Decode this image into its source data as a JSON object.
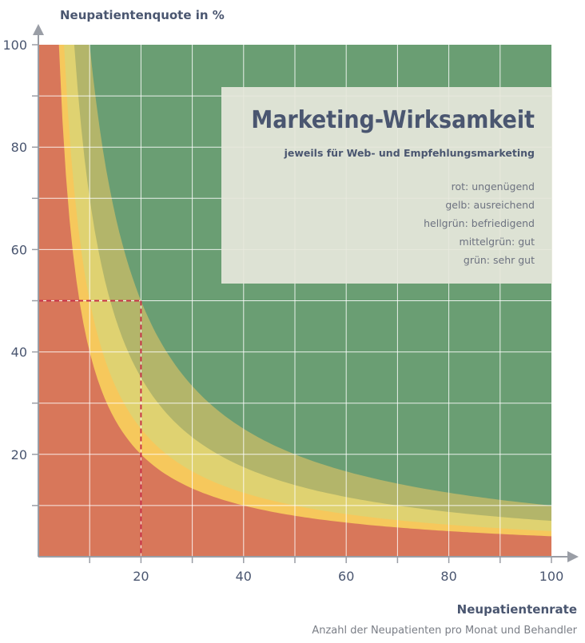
{
  "chart_data": {
    "type": "area",
    "title": "Marketing-Wirksamkeit",
    "subtitle": "jeweils für Web- und Empfehlungsmarketing",
    "ylabel": "Neupatientenquote in %",
    "xlabel": "Neupatientenrate",
    "xlabel_sub": "Anzahl der Neupatienten pro Monat und Behandler",
    "xlim": [
      0,
      100
    ],
    "ylim": [
      0,
      100
    ],
    "x_ticks": [
      20,
      40,
      60,
      80,
      100
    ],
    "y_ticks": [
      20,
      40,
      60,
      80,
      100
    ],
    "grid": true,
    "legend_position": "top-right",
    "legend": [
      "rot: ungenügend",
      "gelb: ausreichend",
      "hellgrün: befriedigend",
      "mittelgrün: gut",
      "grün: sehr gut"
    ],
    "boundaries": [
      {
        "x_times_y": 400,
        "below": "rot"
      },
      {
        "x_times_y": 500,
        "below": "gelb"
      },
      {
        "x_times_y": 700,
        "below": "hellgrün"
      },
      {
        "x_times_y": 1000,
        "below": "mittelgrün"
      }
    ],
    "reference_point": {
      "x": 20,
      "y": 50
    },
    "colors": {
      "rot": "#d8775a",
      "gelb": "#f6c85c",
      "hellgrün": "#dfd271",
      "mittelgrün": "#b3b56a",
      "grün": "#6a9e73",
      "reference": "#c8334a",
      "text": "#4a5670",
      "axis": "#9a9ea6",
      "grid": "#ffffff",
      "legend_box": "#e6e7dc"
    }
  }
}
